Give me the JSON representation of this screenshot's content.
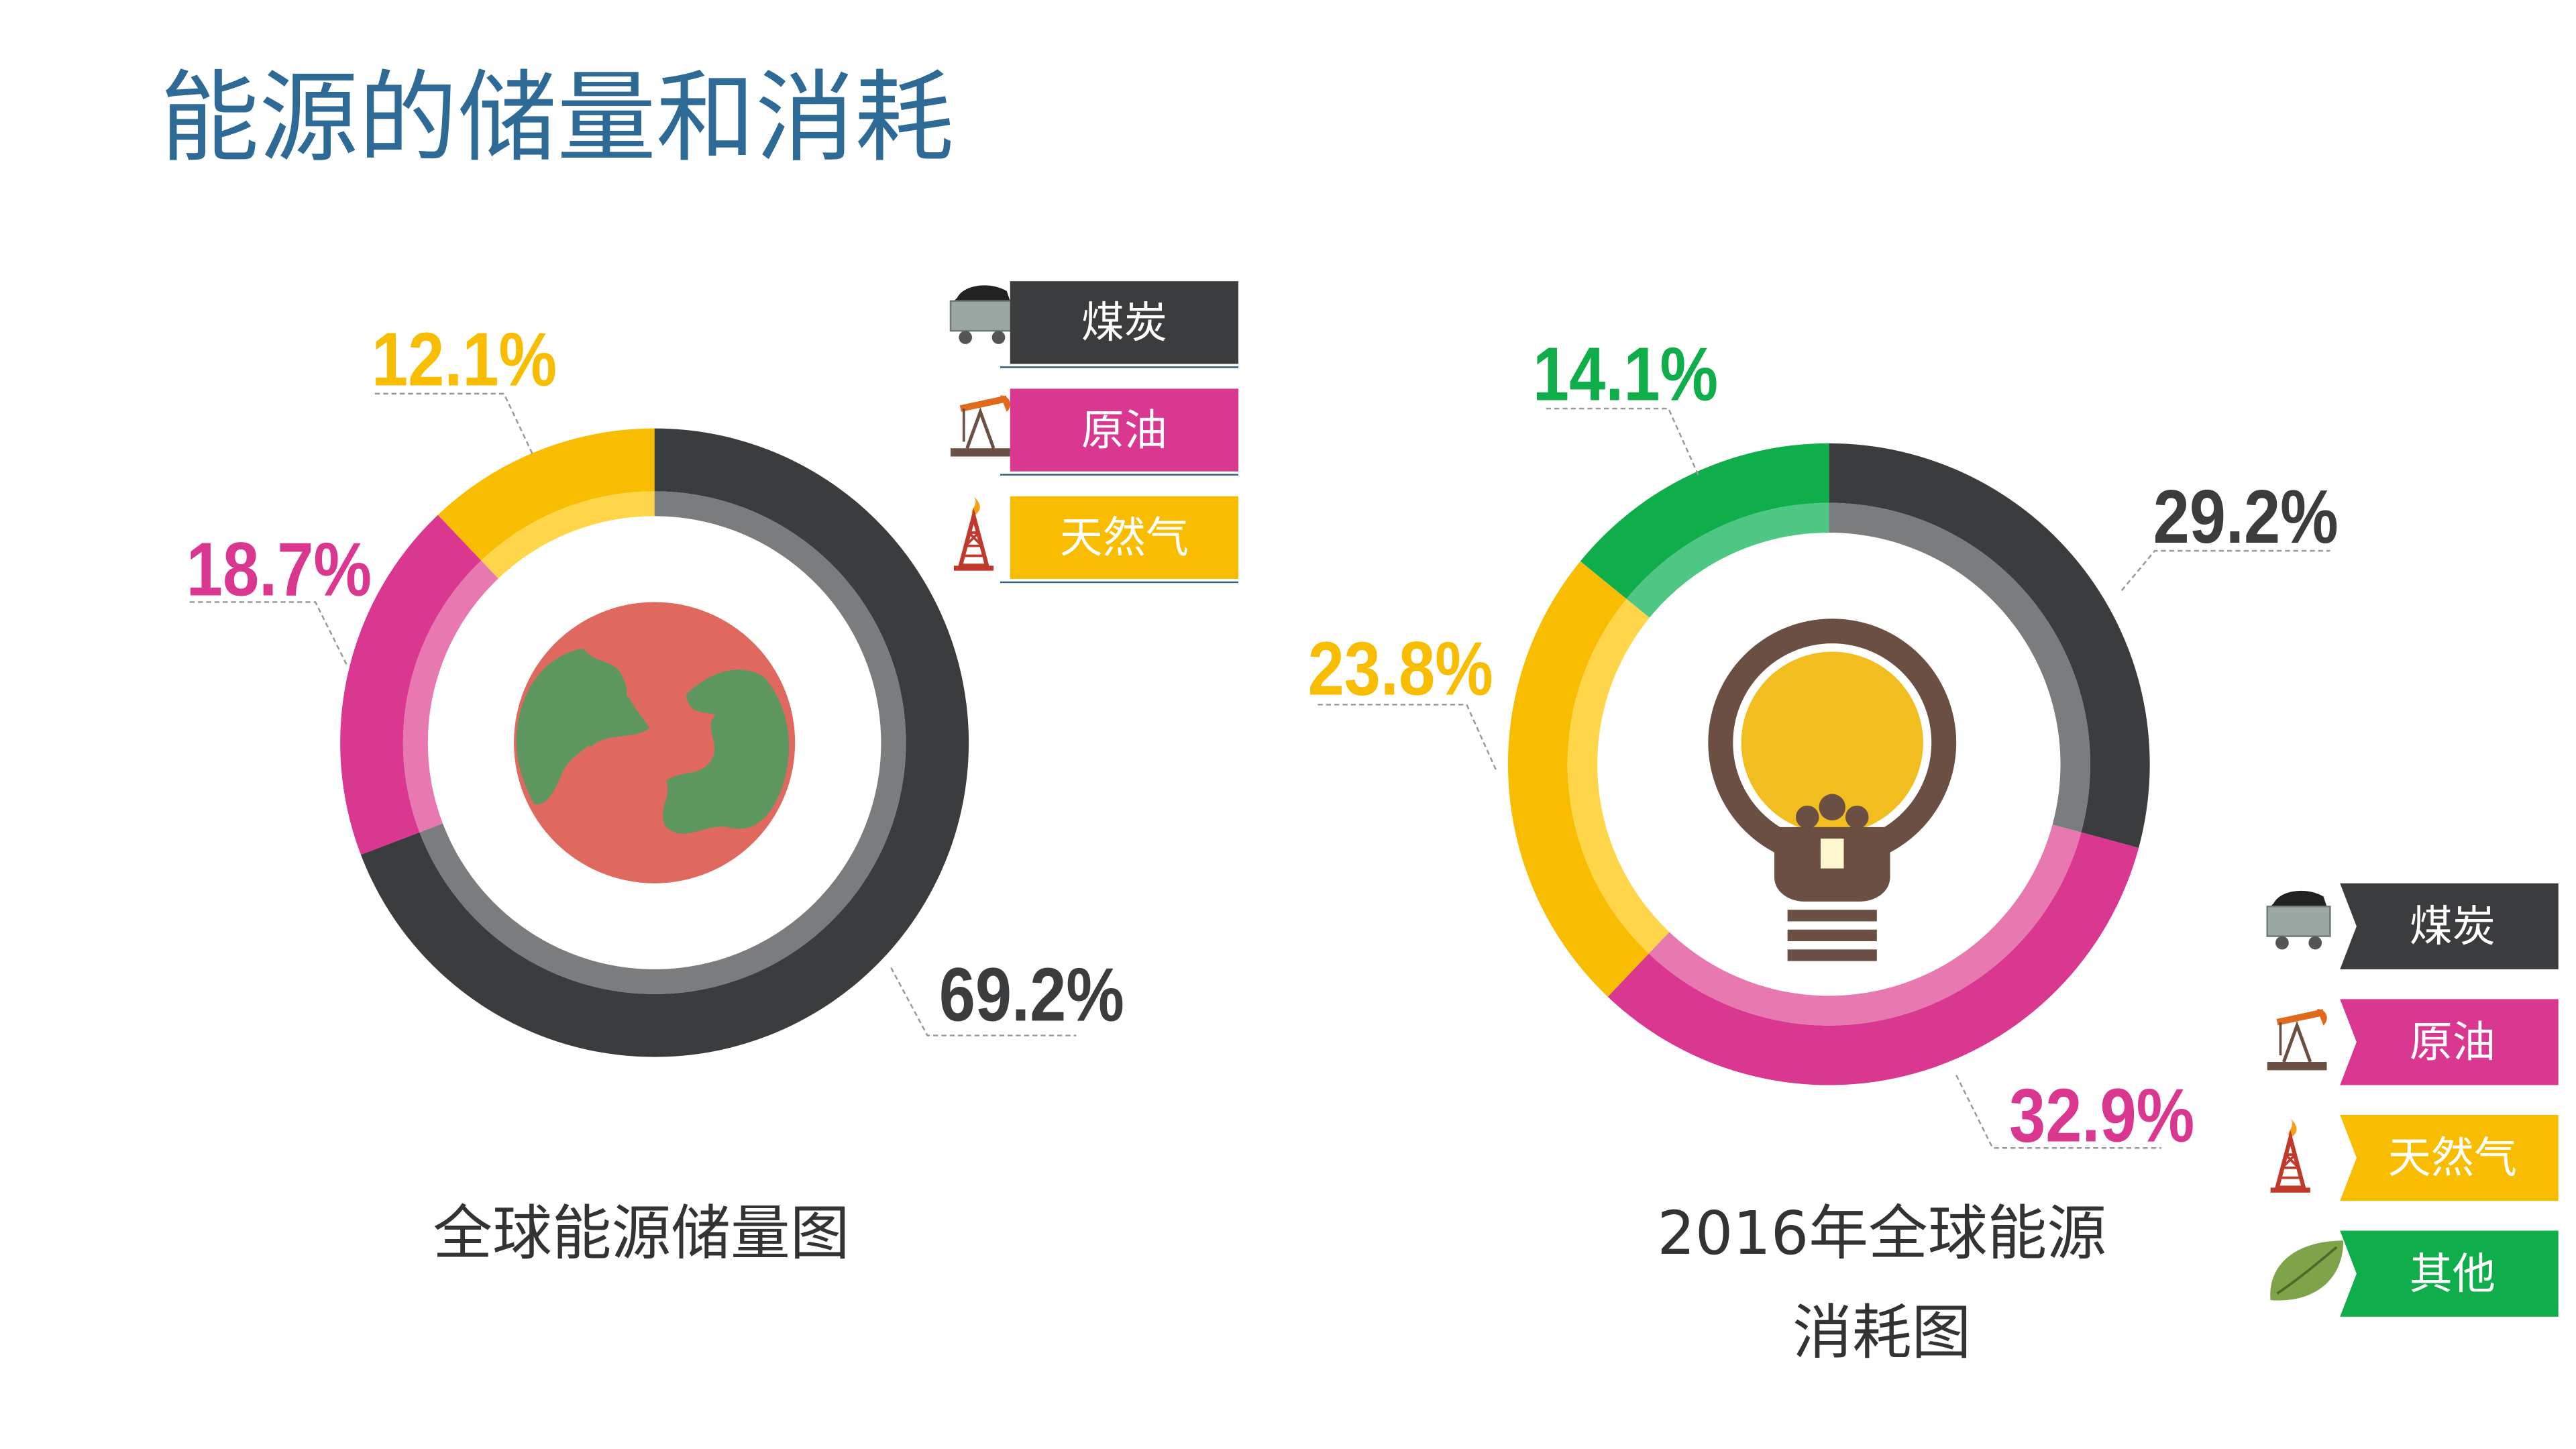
{
  "page": {
    "title": "能源的储量和消耗"
  },
  "colors": {
    "title": "#2e6a96",
    "coal_dark": "#3b3c3e",
    "coal_light": "#7b7c7e",
    "oil_dark": "#d93790",
    "oil_light": "#e878b0",
    "gas_dark": "#f8bd00",
    "gas_light": "#ffd54a",
    "other_dark": "#0fae4a",
    "other_light": "#4ec784",
    "caption": "#333333"
  },
  "legend_top": {
    "items": [
      {
        "label": "煤炭",
        "color": "#3b3c3e",
        "icon": "mine-cart-icon"
      },
      {
        "label": "原油",
        "color": "#d93790",
        "icon": "oil-pump-icon"
      },
      {
        "label": "天然气",
        "color": "#f8bd00",
        "icon": "gas-derrick-icon"
      }
    ]
  },
  "legend_bottom": {
    "items": [
      {
        "label": "煤炭",
        "color": "#3b3c3e",
        "icon": "mine-cart-icon"
      },
      {
        "label": "原油",
        "color": "#d93790",
        "icon": "oil-pump-icon"
      },
      {
        "label": "天然气",
        "color": "#f8bd00",
        "icon": "gas-derrick-icon"
      },
      {
        "label": "其他",
        "color": "#0fae4a",
        "icon": "leaf-icon"
      }
    ]
  },
  "chart_data": [
    {
      "type": "pie",
      "variant": "donut",
      "title": "全球能源储量图",
      "center_icon": "globe-icon",
      "categories": [
        "煤炭",
        "原油",
        "天然气"
      ],
      "values": [
        69.2,
        18.7,
        12.1
      ],
      "value_labels": [
        "69.2%",
        "18.7%",
        "12.1%"
      ],
      "colors": [
        "#3b3c3e",
        "#d93790",
        "#f8bd00"
      ]
    },
    {
      "type": "pie",
      "variant": "donut",
      "title": "2016年全球能源\n消耗图",
      "title_lines": [
        "2016年全球能源",
        "消耗图"
      ],
      "center_icon": "light-bulb-icon",
      "categories": [
        "煤炭",
        "原油",
        "天然气",
        "其他"
      ],
      "values": [
        29.2,
        32.9,
        23.8,
        14.1
      ],
      "value_labels": [
        "29.2%",
        "32.9%",
        "23.8%",
        "14.1%"
      ],
      "colors": [
        "#3b3c3e",
        "#d93790",
        "#f8bd00",
        "#0fae4a"
      ]
    }
  ]
}
